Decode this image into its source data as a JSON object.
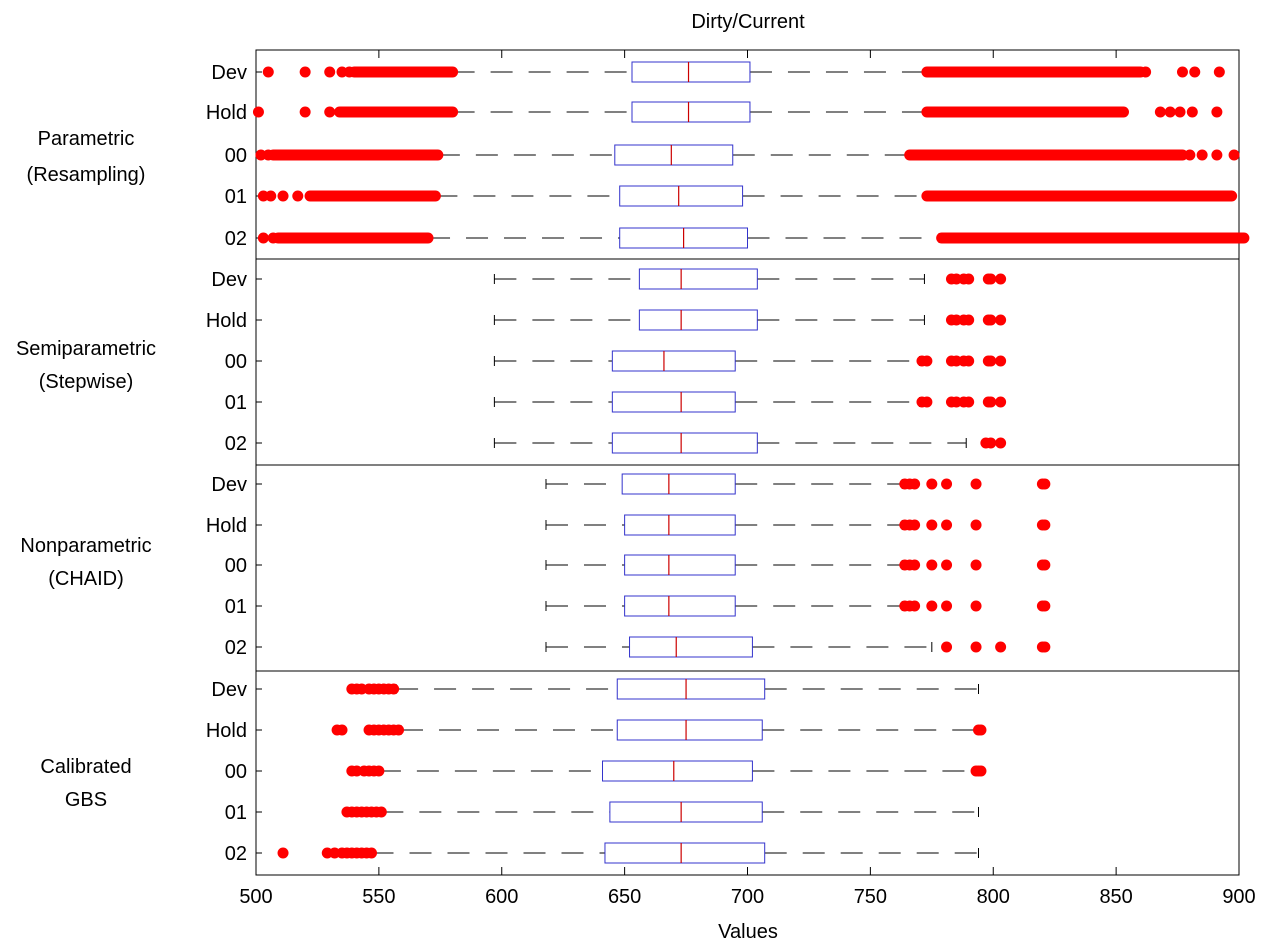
{
  "chart_data": {
    "type": "boxplot",
    "title": "Dirty/Current",
    "xlabel": "Values",
    "xlim": [
      500,
      900
    ],
    "xticks": [
      500,
      550,
      600,
      650,
      700,
      750,
      800,
      850,
      900
    ],
    "colors": {
      "box": "#3333cc",
      "median": "#cc0000",
      "outlier": "#ff0000",
      "whisker": "#000000"
    },
    "groups": [
      {
        "label_lines": [
          "Parametric",
          "(Resampling)"
        ],
        "rows": [
          {
            "label": "Dev",
            "whisker_low": 580,
            "q1": 653,
            "median": 676,
            "q3": 701,
            "whisker_high": 773,
            "outliers": [
              505,
              520,
              530,
              535,
              538,
              [
                540,
                580
              ],
              [
                773,
                860
              ],
              862,
              877,
              882,
              892
            ]
          },
          {
            "label": "Hold",
            "whisker_low": 580,
            "q1": 653,
            "median": 676,
            "q3": 701,
            "whisker_high": 773,
            "outliers": [
              501,
              520,
              530,
              [
                534,
                580
              ],
              [
                773,
                853
              ],
              868,
              872,
              876,
              881,
              891
            ]
          },
          {
            "label": "00",
            "whisker_low": 574,
            "q1": 646,
            "median": 669,
            "q3": 694,
            "whisker_high": 766,
            "outliers": [
              502,
              505,
              [
                507,
                574
              ],
              [
                766,
                877
              ],
              880,
              885,
              891,
              898
            ]
          },
          {
            "label": "01",
            "whisker_low": 573,
            "q1": 648,
            "median": 672,
            "q3": 698,
            "whisker_high": 773,
            "outliers": [
              503,
              506,
              511,
              517,
              [
                522,
                573
              ],
              [
                773,
                897
              ]
            ]
          },
          {
            "label": "02",
            "whisker_low": 570,
            "q1": 648,
            "median": 674,
            "q3": 700,
            "whisker_high": 778,
            "outliers": [
              503,
              507,
              [
                509,
                570
              ],
              [
                779,
                902
              ]
            ]
          }
        ]
      },
      {
        "label_lines": [
          "Semiparametric",
          "(Stepwise)"
        ],
        "rows": [
          {
            "label": "Dev",
            "whisker_low": 597,
            "q1": 656,
            "median": 673,
            "q3": 704,
            "whisker_high": 772,
            "outliers": [
              783,
              785,
              788,
              790,
              798,
              799,
              803
            ]
          },
          {
            "label": "Hold",
            "whisker_low": 597,
            "q1": 656,
            "median": 673,
            "q3": 704,
            "whisker_high": 772,
            "outliers": [
              783,
              785,
              788,
              790,
              798,
              799,
              803
            ]
          },
          {
            "label": "00",
            "whisker_low": 597,
            "q1": 645,
            "median": 666,
            "q3": 695,
            "whisker_high": 770,
            "outliers": [
              771,
              773,
              783,
              785,
              788,
              790,
              798,
              799,
              803
            ]
          },
          {
            "label": "01",
            "whisker_low": 597,
            "q1": 645,
            "median": 673,
            "q3": 695,
            "whisker_high": 770,
            "outliers": [
              771,
              773,
              783,
              785,
              788,
              790,
              798,
              799,
              803
            ]
          },
          {
            "label": "02",
            "whisker_low": 597,
            "q1": 645,
            "median": 673,
            "q3": 704,
            "whisker_high": 789,
            "outliers": [
              797,
              799,
              803
            ]
          }
        ]
      },
      {
        "label_lines": [
          "Nonparametric",
          "(CHAID)"
        ],
        "rows": [
          {
            "label": "Dev",
            "whisker_low": 618,
            "q1": 649,
            "median": 668,
            "q3": 695,
            "whisker_high": 763,
            "outliers": [
              764,
              766,
              768,
              775,
              781,
              793,
              820,
              821
            ]
          },
          {
            "label": "Hold",
            "whisker_low": 618,
            "q1": 650,
            "median": 668,
            "q3": 695,
            "whisker_high": 763,
            "outliers": [
              764,
              766,
              768,
              775,
              781,
              793,
              820,
              821
            ]
          },
          {
            "label": "00",
            "whisker_low": 618,
            "q1": 650,
            "median": 668,
            "q3": 695,
            "whisker_high": 763,
            "outliers": [
              764,
              766,
              768,
              775,
              781,
              793,
              820,
              821
            ]
          },
          {
            "label": "01",
            "whisker_low": 618,
            "q1": 650,
            "median": 668,
            "q3": 695,
            "whisker_high": 763,
            "outliers": [
              764,
              766,
              768,
              775,
              781,
              793,
              820,
              821
            ]
          },
          {
            "label": "02",
            "whisker_low": 618,
            "q1": 652,
            "median": 671,
            "q3": 702,
            "whisker_high": 775,
            "outliers": [
              781,
              793,
              803,
              820,
              821
            ]
          }
        ]
      },
      {
        "label_lines": [
          "Calibrated",
          "GBS"
        ],
        "rows": [
          {
            "label": "Dev",
            "whisker_low": 557,
            "q1": 647,
            "median": 675,
            "q3": 707,
            "whisker_high": 794,
            "outliers": [
              539,
              541,
              543,
              546,
              548,
              550,
              552,
              554,
              556
            ]
          },
          {
            "label": "Hold",
            "whisker_low": 559,
            "q1": 647,
            "median": 675,
            "q3": 706,
            "whisker_high": 794,
            "outliers": [
              533,
              535,
              546,
              548,
              550,
              552,
              554,
              556,
              558,
              794,
              795
            ]
          },
          {
            "label": "00",
            "whisker_low": 550,
            "q1": 641,
            "median": 670,
            "q3": 702,
            "whisker_high": 794,
            "outliers": [
              539,
              541,
              544,
              546,
              548,
              550,
              793,
              794,
              795
            ]
          },
          {
            "label": "01",
            "whisker_low": 551,
            "q1": 644,
            "median": 673,
            "q3": 706,
            "whisker_high": 794,
            "outliers": [
              537,
              539,
              541,
              543,
              545,
              547,
              549,
              551
            ]
          },
          {
            "label": "02",
            "whisker_low": 547,
            "q1": 642,
            "median": 673,
            "q3": 707,
            "whisker_high": 794,
            "outliers": [
              511,
              529,
              532,
              535,
              537,
              539,
              541,
              543,
              545,
              547
            ]
          }
        ]
      }
    ]
  }
}
